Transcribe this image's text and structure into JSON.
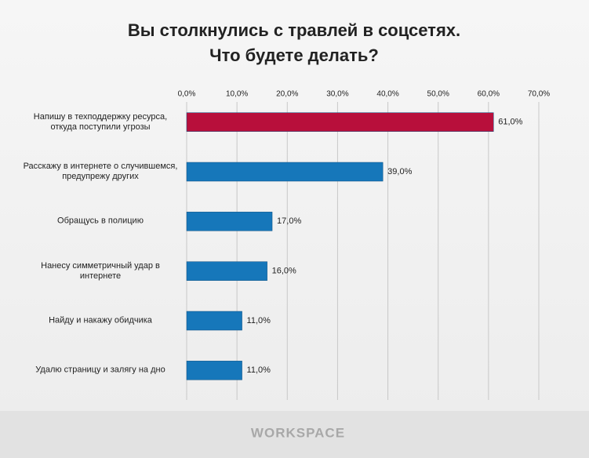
{
  "chart_data": {
    "type": "hbar",
    "title": [
      "Вы столкнулись с травлей в соцсетях.",
      "Что будете делать?"
    ],
    "categories": [
      "Напишу в техподдержку ресурса, откуда поступили угрозы",
      "Расскажу в интернете о случившемся, предупрежу других",
      "Обращусь в полицию",
      "Нанесу симметричный удар в интернете",
      "Найду и накажу обидчика",
      "Удалю страницу и залягу на дно"
    ],
    "values": [
      61,
      39,
      17,
      16,
      11,
      11
    ],
    "value_labels": [
      "61,0%",
      "39,0%",
      "17,0%",
      "16,0%",
      "11,0%",
      "11,0%"
    ],
    "colors": [
      "#b80f3b",
      "#1677ba",
      "#1677ba",
      "#1677ba",
      "#1677ba",
      "#1677ba"
    ],
    "xlim": [
      0,
      70
    ],
    "xticks": [
      {
        "value": 0,
        "label": "0,0%"
      },
      {
        "value": 10,
        "label": "10,0%"
      },
      {
        "value": 20,
        "label": "20,0%"
      },
      {
        "value": 30,
        "label": "30,0%"
      },
      {
        "value": 40,
        "label": "40,0%"
      },
      {
        "value": 50,
        "label": "50,0%"
      },
      {
        "value": 60,
        "label": "60,0%"
      },
      {
        "value": 70,
        "label": "70,0%"
      }
    ],
    "grid": true,
    "footer": "WORKSPACE"
  }
}
